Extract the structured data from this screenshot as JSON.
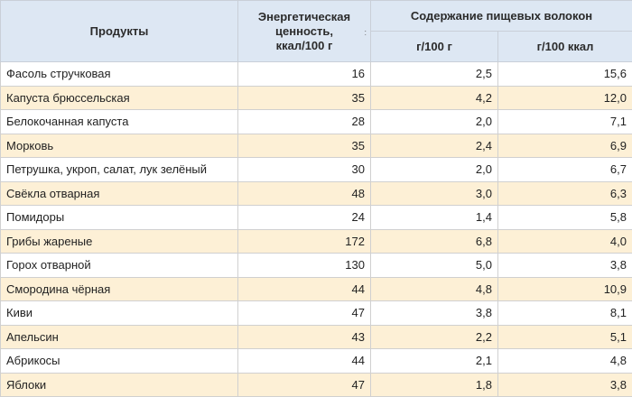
{
  "table": {
    "headers": {
      "products": "Продукты",
      "energy_line1": "Энергетическая",
      "energy_line2": "ценность,",
      "energy_line3": "ккал/100 г",
      "sort_indicator": ":",
      "fiber_group": "Содержание пищевых волокон",
      "per_100g": "г/100 г",
      "per_100kcal": "г/100 ккал"
    },
    "rows": [
      {
        "product": "Фасоль стручковая",
        "kcal": "16",
        "g100g": "2,5",
        "g100kcal": "15,6"
      },
      {
        "product": "Капуста брюссельская",
        "kcal": "35",
        "g100g": "4,2",
        "g100kcal": "12,0"
      },
      {
        "product": "Белокочанная капуста",
        "kcal": "28",
        "g100g": "2,0",
        "g100kcal": "7,1"
      },
      {
        "product": "Морковь",
        "kcal": "35",
        "g100g": "2,4",
        "g100kcal": "6,9"
      },
      {
        "product": "Петрушка, укроп, салат, лук зелёный",
        "kcal": "30",
        "g100g": "2,0",
        "g100kcal": "6,7"
      },
      {
        "product": "Свёкла отварная",
        "kcal": "48",
        "g100g": "3,0",
        "g100kcal": "6,3"
      },
      {
        "product": "Помидоры",
        "kcal": "24",
        "g100g": "1,4",
        "g100kcal": "5,8"
      },
      {
        "product": "Грибы жареные",
        "kcal": "172",
        "g100g": "6,8",
        "g100kcal": "4,0"
      },
      {
        "product": "Горох отварной",
        "kcal": "130",
        "g100g": "5,0",
        "g100kcal": "3,8"
      },
      {
        "product": "Смородина чёрная",
        "kcal": "44",
        "g100g": "4,8",
        "g100kcal": "10,9"
      },
      {
        "product": "Киви",
        "kcal": "47",
        "g100g": "3,8",
        "g100kcal": "8,1"
      },
      {
        "product": "Апельсин",
        "kcal": "43",
        "g100g": "2,2",
        "g100kcal": "5,1"
      },
      {
        "product": "Абрикосы",
        "kcal": "44",
        "g100g": "2,1",
        "g100kcal": "4,8"
      },
      {
        "product": "Яблоки",
        "kcal": "47",
        "g100g": "1,8",
        "g100kcal": "3,8"
      }
    ]
  }
}
